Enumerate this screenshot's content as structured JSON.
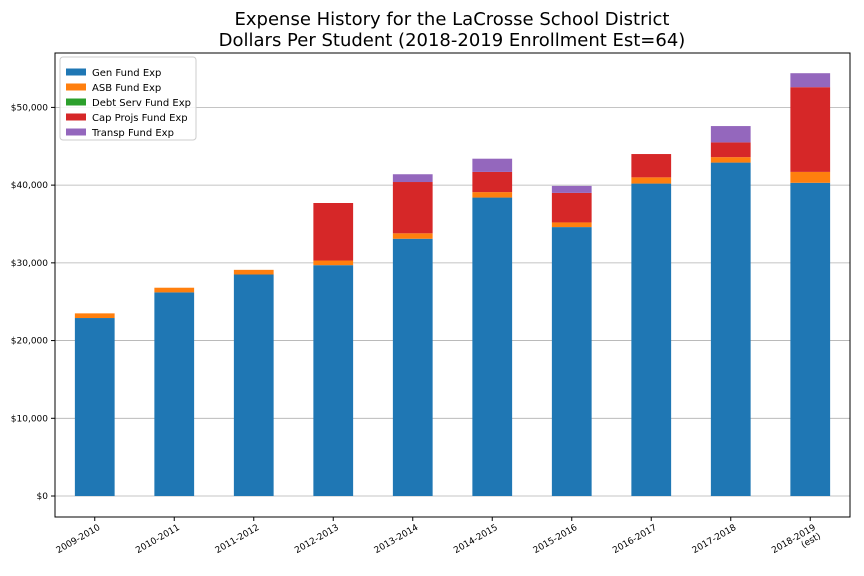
{
  "chart_data": {
    "type": "bar",
    "stacked": true,
    "title": "Expense History for the LaCrosse School District",
    "subtitle": "Dollars Per Student (2018-2019 Enrollment Est=64)",
    "xlabel": "",
    "ylabel": "",
    "categories": [
      [
        "2009-2010"
      ],
      [
        "2010-2011"
      ],
      [
        "2011-2012"
      ],
      [
        "2012-2013"
      ],
      [
        "2013-2014"
      ],
      [
        "2014-2015"
      ],
      [
        "2015-2016"
      ],
      [
        "2016-2017"
      ],
      [
        "2017-2018"
      ],
      [
        "2018-2019",
        "(est)"
      ]
    ],
    "series": [
      {
        "name": "Gen Fund Exp",
        "color": "#1f77b4",
        "values": [
          22900,
          26200,
          28500,
          29700,
          33100,
          38400,
          34600,
          40200,
          42900,
          40300
        ]
      },
      {
        "name": "ASB Fund Exp",
        "color": "#ff7f0e",
        "values": [
          600,
          600,
          600,
          600,
          700,
          700,
          600,
          800,
          700,
          1400
        ]
      },
      {
        "name": "Debt Serv Fund Exp",
        "color": "#2ca02c",
        "values": [
          0,
          0,
          0,
          0,
          0,
          0,
          0,
          0,
          0,
          0
        ]
      },
      {
        "name": "Cap Projs Fund Exp",
        "color": "#d62728",
        "values": [
          0,
          0,
          0,
          7400,
          6600,
          2600,
          3800,
          3000,
          1900,
          10900
        ]
      },
      {
        "name": "Transp Fund Exp",
        "color": "#9467bd",
        "values": [
          0,
          0,
          0,
          0,
          1000,
          1700,
          900,
          0,
          2100,
          1800
        ]
      }
    ],
    "yticks": [
      0,
      10000,
      20000,
      30000,
      40000,
      50000
    ],
    "ytick_labels": [
      "$0",
      "$10,000",
      "$20,000",
      "$30,000",
      "$40,000",
      "$50,000"
    ],
    "ylim": [
      -2700,
      57000
    ],
    "grid": "horizontal",
    "legend_position": "top-left"
  }
}
